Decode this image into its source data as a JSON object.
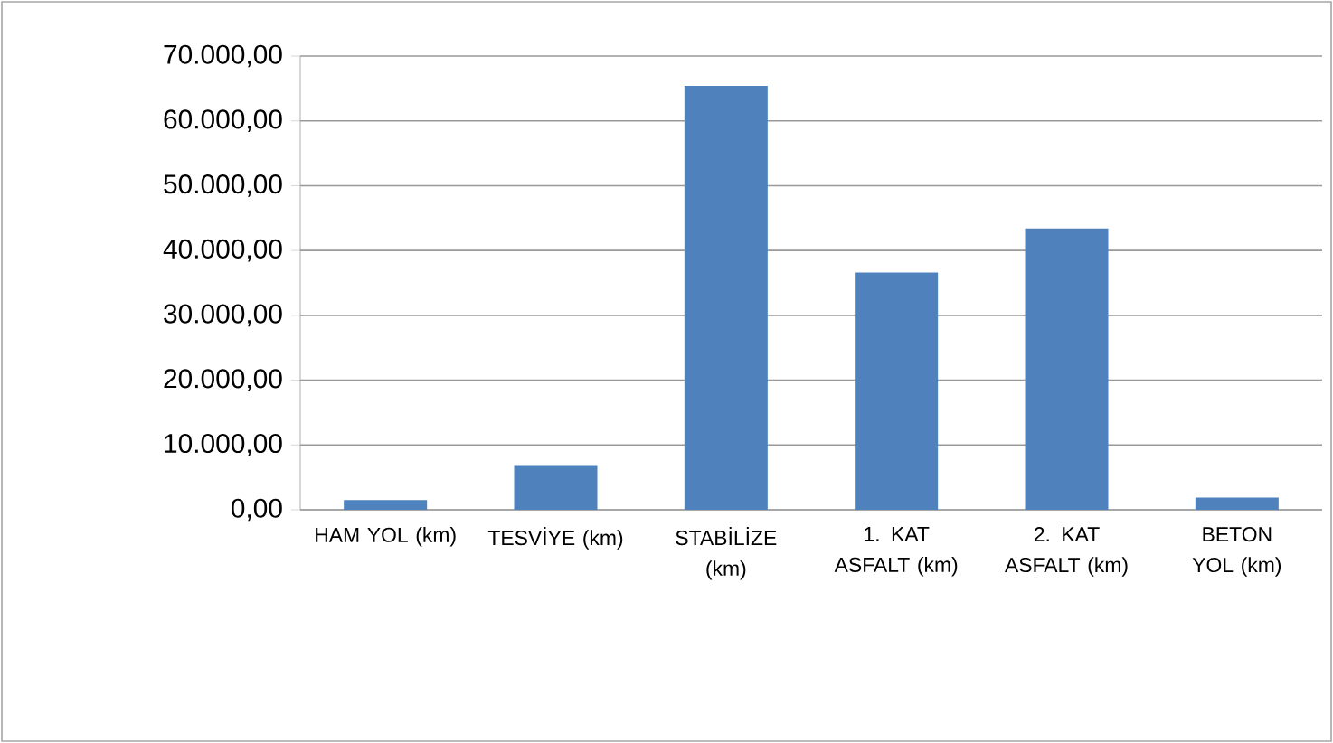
{
  "chart_data": {
    "type": "bar",
    "categories": [
      "HAM YOL (km)",
      "TESVİYE (km)",
      "STABİLİZE (km)",
      "1. KAT ASFALT (km)",
      "2. KAT ASFALT (km)",
      "BETON YOL (km)"
    ],
    "values": [
      1500,
      6900,
      65400,
      36600,
      43400,
      1900
    ],
    "color": "#4f81bd",
    "ylim": [
      0,
      70000
    ],
    "yticks": [
      {
        "value": 0,
        "label": "0,00"
      },
      {
        "value": 10000,
        "label": "10.000,00"
      },
      {
        "value": 20000,
        "label": "20.000,00"
      },
      {
        "value": 30000,
        "label": "30.000,00"
      },
      {
        "value": 40000,
        "label": "40.000,00"
      },
      {
        "value": 50000,
        "label": "50.000,00"
      },
      {
        "value": 60000,
        "label": "60.000,00"
      },
      {
        "value": 70000,
        "label": "70.000,00"
      }
    ],
    "grid": "y"
  }
}
